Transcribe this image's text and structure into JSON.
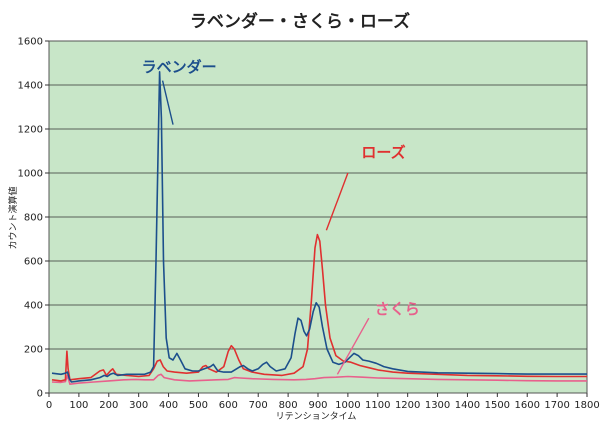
{
  "chart_data": {
    "type": "line",
    "title": "ラベンダー・さくら・ローズ",
    "xlabel": "リテンションタイム",
    "ylabel": "カウント演算値",
    "xlim": [
      0,
      1800
    ],
    "ylim": [
      0,
      1600
    ],
    "x_ticks": [
      0,
      100,
      200,
      300,
      400,
      500,
      600,
      700,
      800,
      900,
      1000,
      1100,
      1200,
      1300,
      1400,
      1500,
      1600,
      1700,
      1800
    ],
    "y_ticks": [
      0,
      200,
      400,
      600,
      800,
      1000,
      1200,
      1400,
      1600
    ],
    "grid": "horizontal",
    "background_color": "#c8e6c8",
    "series": [
      {
        "name": "ラベンダー",
        "color": "#1c4f8c",
        "points": [
          [
            10,
            90
          ],
          [
            40,
            85
          ],
          [
            55,
            90
          ],
          [
            62,
            95
          ],
          [
            68,
            65
          ],
          [
            75,
            50
          ],
          [
            100,
            55
          ],
          [
            140,
            60
          ],
          [
            170,
            70
          ],
          [
            185,
            80
          ],
          [
            195,
            75
          ],
          [
            205,
            85
          ],
          [
            215,
            90
          ],
          [
            230,
            80
          ],
          [
            260,
            85
          ],
          [
            290,
            85
          ],
          [
            320,
            85
          ],
          [
            340,
            95
          ],
          [
            350,
            120
          ],
          [
            358,
            600
          ],
          [
            365,
            1100
          ],
          [
            370,
            1460
          ],
          [
            376,
            1250
          ],
          [
            383,
            600
          ],
          [
            392,
            250
          ],
          [
            402,
            160
          ],
          [
            415,
            150
          ],
          [
            428,
            180
          ],
          [
            440,
            150
          ],
          [
            455,
            110
          ],
          [
            480,
            100
          ],
          [
            500,
            100
          ],
          [
            520,
            110
          ],
          [
            540,
            120
          ],
          [
            550,
            130
          ],
          [
            565,
            100
          ],
          [
            585,
            95
          ],
          [
            610,
            95
          ],
          [
            640,
            120
          ],
          [
            650,
            125
          ],
          [
            665,
            110
          ],
          [
            680,
            100
          ],
          [
            700,
            110
          ],
          [
            715,
            130
          ],
          [
            728,
            140
          ],
          [
            740,
            120
          ],
          [
            760,
            100
          ],
          [
            790,
            110
          ],
          [
            810,
            160
          ],
          [
            823,
            270
          ],
          [
            833,
            340
          ],
          [
            843,
            330
          ],
          [
            853,
            280
          ],
          [
            862,
            260
          ],
          [
            872,
            290
          ],
          [
            884,
            370
          ],
          [
            894,
            410
          ],
          [
            904,
            390
          ],
          [
            915,
            300
          ],
          [
            930,
            200
          ],
          [
            950,
            140
          ],
          [
            970,
            130
          ],
          [
            990,
            140
          ],
          [
            1005,
            160
          ],
          [
            1020,
            180
          ],
          [
            1035,
            170
          ],
          [
            1050,
            150
          ],
          [
            1070,
            145
          ],
          [
            1095,
            135
          ],
          [
            1120,
            120
          ],
          [
            1150,
            110
          ],
          [
            1200,
            98
          ],
          [
            1300,
            92
          ],
          [
            1400,
            90
          ],
          [
            1500,
            88
          ],
          [
            1600,
            86
          ],
          [
            1700,
            86
          ],
          [
            1800,
            86
          ]
        ]
      },
      {
        "name": "ローズ",
        "color": "#e03030",
        "points": [
          [
            10,
            60
          ],
          [
            40,
            55
          ],
          [
            55,
            60
          ],
          [
            60,
            190
          ],
          [
            64,
            110
          ],
          [
            70,
            60
          ],
          [
            100,
            65
          ],
          [
            140,
            70
          ],
          [
            170,
            100
          ],
          [
            182,
            105
          ],
          [
            192,
            80
          ],
          [
            205,
            100
          ],
          [
            213,
            110
          ],
          [
            225,
            85
          ],
          [
            260,
            80
          ],
          [
            300,
            75
          ],
          [
            335,
            80
          ],
          [
            350,
            110
          ],
          [
            362,
            145
          ],
          [
            372,
            150
          ],
          [
            382,
            120
          ],
          [
            395,
            100
          ],
          [
            420,
            95
          ],
          [
            460,
            90
          ],
          [
            500,
            95
          ],
          [
            515,
            120
          ],
          [
            525,
            125
          ],
          [
            535,
            110
          ],
          [
            560,
            95
          ],
          [
            585,
            120
          ],
          [
            600,
            190
          ],
          [
            610,
            215
          ],
          [
            620,
            200
          ],
          [
            635,
            150
          ],
          [
            650,
            110
          ],
          [
            680,
            95
          ],
          [
            720,
            85
          ],
          [
            780,
            80
          ],
          [
            820,
            90
          ],
          [
            850,
            120
          ],
          [
            865,
            200
          ],
          [
            878,
            420
          ],
          [
            890,
            660
          ],
          [
            898,
            720
          ],
          [
            906,
            690
          ],
          [
            915,
            560
          ],
          [
            925,
            400
          ],
          [
            940,
            250
          ],
          [
            960,
            170
          ],
          [
            985,
            145
          ],
          [
            1010,
            140
          ],
          [
            1040,
            125
          ],
          [
            1070,
            115
          ],
          [
            1100,
            105
          ],
          [
            1150,
            95
          ],
          [
            1200,
            90
          ],
          [
            1300,
            85
          ],
          [
            1400,
            80
          ],
          [
            1500,
            78
          ],
          [
            1600,
            76
          ],
          [
            1700,
            75
          ],
          [
            1800,
            75
          ]
        ]
      },
      {
        "name": "さくら",
        "color": "#e8608c",
        "points": [
          [
            10,
            50
          ],
          [
            40,
            48
          ],
          [
            55,
            52
          ],
          [
            62,
            80
          ],
          [
            70,
            40
          ],
          [
            100,
            45
          ],
          [
            150,
            50
          ],
          [
            200,
            55
          ],
          [
            250,
            60
          ],
          [
            290,
            62
          ],
          [
            320,
            60
          ],
          [
            350,
            60
          ],
          [
            365,
            80
          ],
          [
            375,
            85
          ],
          [
            385,
            70
          ],
          [
            420,
            60
          ],
          [
            470,
            55
          ],
          [
            530,
            58
          ],
          [
            560,
            60
          ],
          [
            600,
            62
          ],
          [
            620,
            70
          ],
          [
            640,
            68
          ],
          [
            680,
            65
          ],
          [
            750,
            62
          ],
          [
            820,
            60
          ],
          [
            860,
            62
          ],
          [
            890,
            65
          ],
          [
            920,
            70
          ],
          [
            960,
            72
          ],
          [
            1000,
            75
          ],
          [
            1050,
            72
          ],
          [
            1100,
            68
          ],
          [
            1200,
            65
          ],
          [
            1300,
            62
          ],
          [
            1400,
            60
          ],
          [
            1500,
            58
          ],
          [
            1600,
            56
          ],
          [
            1700,
            55
          ],
          [
            1800,
            55
          ]
        ]
      }
    ],
    "annotations": [
      {
        "text": "ラベンダー",
        "color": "#1c4f8c",
        "label_at": [
          310,
          1460
        ],
        "line": [
          [
            380,
            1420
          ],
          [
            415,
            1220
          ]
        ]
      },
      {
        "text": "ローズ",
        "color": "#e03030",
        "label_at": [
          1045,
          1070
        ],
        "line": [
          [
            1000,
            1000
          ],
          [
            928,
            740
          ]
        ]
      },
      {
        "text": "さくら",
        "color": "#e8608c",
        "label_at": [
          1090,
          360
        ],
        "line": [
          [
            1070,
            340
          ],
          [
            965,
            85
          ]
        ]
      }
    ]
  }
}
